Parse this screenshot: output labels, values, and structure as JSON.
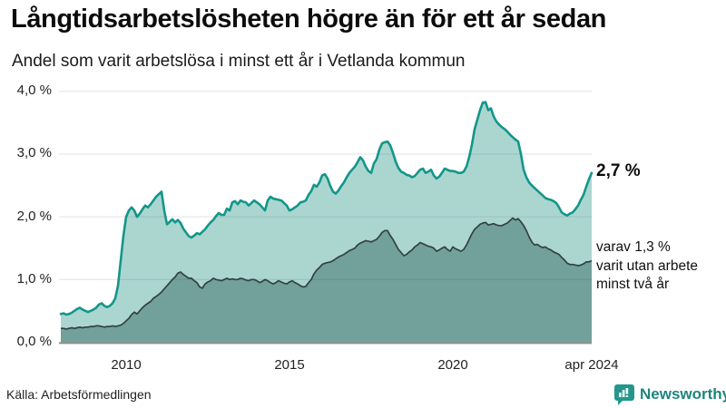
{
  "header": {
    "title": "Långtidsarbetslösheten högre än för ett år sedan",
    "subtitle": "Andel som varit arbetslösa i minst ett år i Vetlanda kommun"
  },
  "chart_data": {
    "type": "area",
    "title": "Långtidsarbetslösheten högre än för ett år sedan",
    "subtitle": "Andel som varit arbetslösa i minst ett år i Vetlanda kommun",
    "unit": "%",
    "frequency": "monthly",
    "x_start": "2008-01",
    "x_end": "2024-04",
    "ylim": [
      0,
      4
    ],
    "grid": true,
    "legend_position": "right-annotations",
    "y_ticks": [
      {
        "value": 0,
        "label": "0,0 %"
      },
      {
        "value": 1,
        "label": "1,0 %"
      },
      {
        "value": 2,
        "label": "2,0 %"
      },
      {
        "value": 3,
        "label": "3,0 %"
      },
      {
        "value": 4,
        "label": "4,0 %"
      }
    ],
    "x_ticks": [
      {
        "month_index": 24,
        "label": "2010"
      },
      {
        "month_index": 84,
        "label": "2015"
      },
      {
        "month_index": 144,
        "label": "2020"
      },
      {
        "month_index": 195,
        "label": "apr 2024"
      }
    ],
    "series": [
      {
        "name": "Arbetslösa minst ett år",
        "latest_value_label": "2,7 %",
        "line_color": "#13968a",
        "fill_color": "#abd6d0",
        "values": [
          0.45,
          0.46,
          0.44,
          0.45,
          0.47,
          0.5,
          0.53,
          0.55,
          0.52,
          0.5,
          0.48,
          0.5,
          0.52,
          0.55,
          0.6,
          0.62,
          0.58,
          0.56,
          0.58,
          0.62,
          0.7,
          0.9,
          1.3,
          1.7,
          2.0,
          2.1,
          2.15,
          2.1,
          2.0,
          2.05,
          2.12,
          2.18,
          2.15,
          2.2,
          2.26,
          2.32,
          2.36,
          2.4,
          2.1,
          1.88,
          1.92,
          1.96,
          1.91,
          1.95,
          1.9,
          1.81,
          1.75,
          1.69,
          1.67,
          1.7,
          1.74,
          1.72,
          1.76,
          1.8,
          1.86,
          1.91,
          1.95,
          2.01,
          2.06,
          2.03,
          2.03,
          2.13,
          2.1,
          2.23,
          2.25,
          2.2,
          2.26,
          2.24,
          2.23,
          2.18,
          2.22,
          2.26,
          2.23,
          2.2,
          2.15,
          2.1,
          2.26,
          2.32,
          2.29,
          2.28,
          2.27,
          2.26,
          2.22,
          2.18,
          2.1,
          2.12,
          2.15,
          2.18,
          2.23,
          2.24,
          2.26,
          2.35,
          2.41,
          2.51,
          2.48,
          2.55,
          2.66,
          2.68,
          2.61,
          2.49,
          2.4,
          2.37,
          2.42,
          2.49,
          2.55,
          2.63,
          2.7,
          2.75,
          2.8,
          2.87,
          2.95,
          2.9,
          2.8,
          2.73,
          2.7,
          2.85,
          2.92,
          3.07,
          3.17,
          3.19,
          3.2,
          3.14,
          3.02,
          2.88,
          2.78,
          2.72,
          2.7,
          2.67,
          2.66,
          2.63,
          2.65,
          2.7,
          2.75,
          2.77,
          2.7,
          2.72,
          2.75,
          2.66,
          2.61,
          2.64,
          2.7,
          2.77,
          2.75,
          2.73,
          2.73,
          2.72,
          2.7,
          2.7,
          2.72,
          2.8,
          2.95,
          3.15,
          3.4,
          3.55,
          3.7,
          3.82,
          3.83,
          3.7,
          3.73,
          3.6,
          3.52,
          3.47,
          3.43,
          3.4,
          3.36,
          3.31,
          3.27,
          3.23,
          3.2,
          3.0,
          2.75,
          2.63,
          2.55,
          2.5,
          2.46,
          2.42,
          2.38,
          2.34,
          2.3,
          2.28,
          2.27,
          2.25,
          2.22,
          2.15,
          2.07,
          2.04,
          2.02,
          2.05,
          2.07,
          2.12,
          2.18,
          2.27,
          2.35,
          2.48,
          2.6,
          2.7
        ]
      },
      {
        "name": "Varav utan arbete minst två år",
        "latest_value_label": "1,3 %",
        "line_color": "#33413f",
        "fill_color": "#71a19a",
        "values": [
          0.22,
          0.22,
          0.21,
          0.22,
          0.23,
          0.22,
          0.23,
          0.24,
          0.23,
          0.24,
          0.24,
          0.25,
          0.25,
          0.26,
          0.26,
          0.25,
          0.24,
          0.25,
          0.25,
          0.26,
          0.25,
          0.26,
          0.27,
          0.3,
          0.34,
          0.38,
          0.44,
          0.48,
          0.45,
          0.5,
          0.55,
          0.59,
          0.62,
          0.65,
          0.7,
          0.73,
          0.76,
          0.8,
          0.85,
          0.9,
          0.95,
          1.0,
          1.04,
          1.1,
          1.12,
          1.08,
          1.05,
          1.02,
          1.02,
          0.98,
          0.95,
          0.88,
          0.86,
          0.93,
          0.96,
          0.98,
          1.02,
          1.0,
          0.99,
          0.98,
          1.0,
          1.02,
          1.0,
          1.01,
          1.0,
          1.0,
          1.02,
          1.01,
          0.99,
          0.98,
          1.0,
          1.0,
          0.98,
          0.95,
          0.97,
          1.0,
          0.98,
          0.95,
          0.93,
          0.95,
          0.98,
          0.96,
          0.94,
          0.93,
          0.96,
          0.98,
          0.95,
          0.93,
          0.9,
          0.88,
          0.89,
          0.95,
          1.0,
          1.09,
          1.15,
          1.19,
          1.24,
          1.26,
          1.27,
          1.28,
          1.3,
          1.33,
          1.36,
          1.38,
          1.4,
          1.43,
          1.46,
          1.48,
          1.5,
          1.55,
          1.58,
          1.6,
          1.62,
          1.61,
          1.6,
          1.62,
          1.64,
          1.69,
          1.75,
          1.78,
          1.78,
          1.7,
          1.64,
          1.56,
          1.48,
          1.43,
          1.38,
          1.4,
          1.44,
          1.47,
          1.52,
          1.55,
          1.59,
          1.57,
          1.55,
          1.53,
          1.52,
          1.5,
          1.45,
          1.47,
          1.5,
          1.52,
          1.48,
          1.45,
          1.52,
          1.49,
          1.47,
          1.45,
          1.48,
          1.55,
          1.64,
          1.73,
          1.8,
          1.84,
          1.88,
          1.9,
          1.91,
          1.87,
          1.88,
          1.89,
          1.87,
          1.86,
          1.86,
          1.88,
          1.9,
          1.94,
          1.98,
          1.95,
          1.97,
          1.92,
          1.86,
          1.78,
          1.68,
          1.6,
          1.55,
          1.56,
          1.53,
          1.51,
          1.52,
          1.49,
          1.47,
          1.44,
          1.42,
          1.4,
          1.35,
          1.31,
          1.26,
          1.24,
          1.24,
          1.23,
          1.22,
          1.23,
          1.25,
          1.28,
          1.28,
          1.3
        ]
      }
    ]
  },
  "annotations": {
    "latest_total": "2,7 %",
    "subset_lines": [
      "varav 1,3 %",
      "varit utan arbete",
      "minst två år"
    ]
  },
  "footer": {
    "source": "Källa: Arbetsförmedlingen",
    "logo_text": "Newsworthy"
  },
  "colors": {
    "accent_teal": "#13968a",
    "light_fill": "#abd6d0",
    "dark_fill": "#71a19a",
    "dark_line": "#33413f",
    "gridline": "rgba(60,60,80,0.15)",
    "axis_line": "#8d8d8d",
    "logo_teal": "#23978c"
  }
}
